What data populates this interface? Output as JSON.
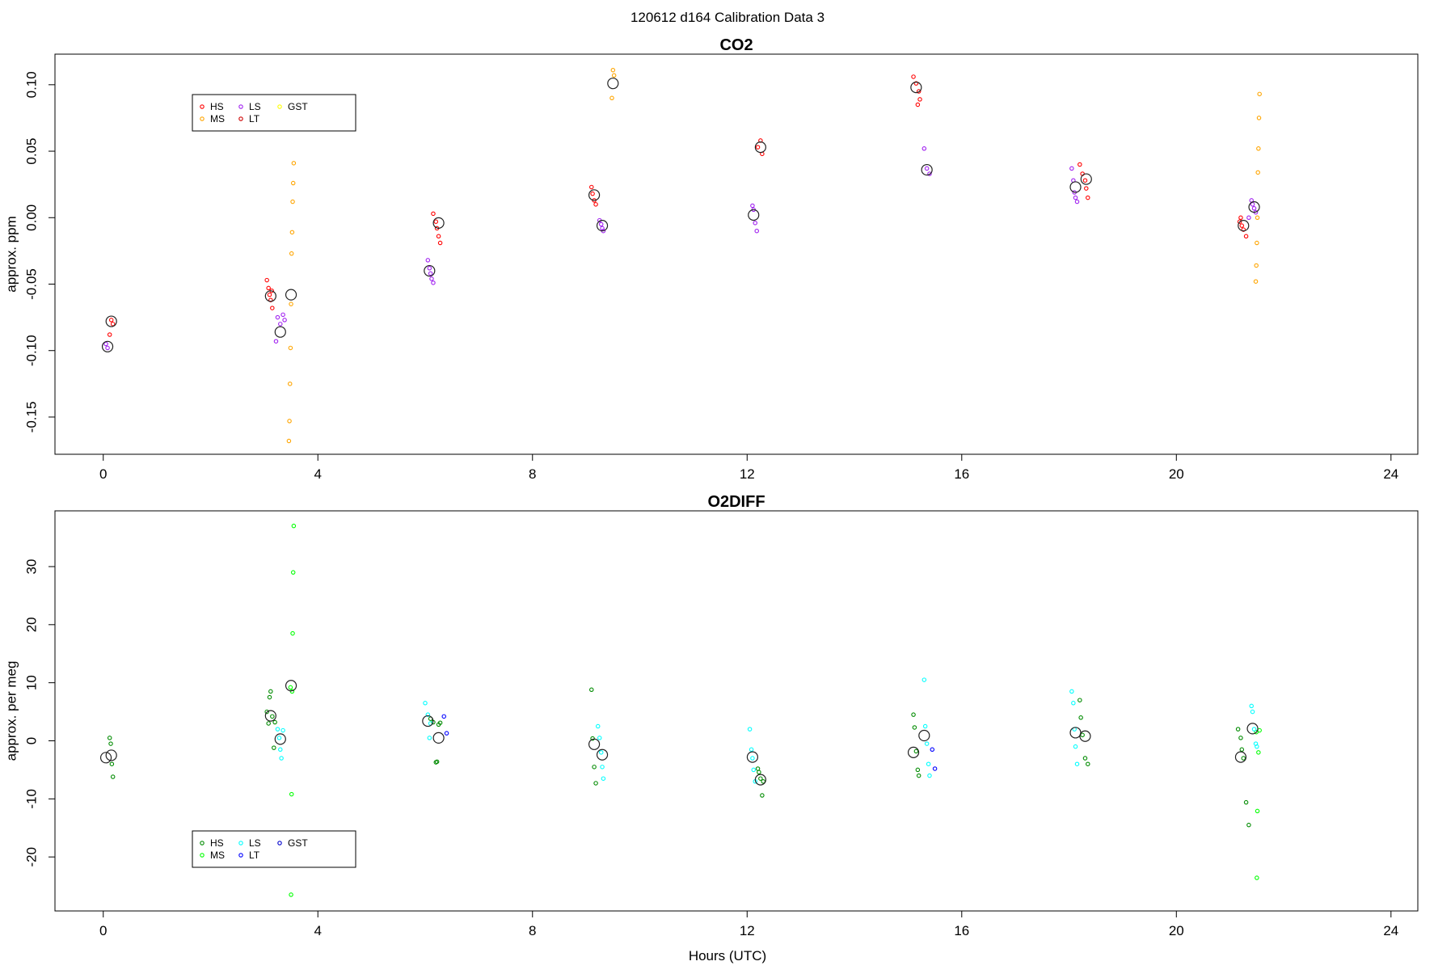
{
  "figure": {
    "title": "120612   d164   Calibration Data 3",
    "xlabel": "Hours (UTC)"
  },
  "chart_data": [
    {
      "type": "scatter",
      "title": "CO2",
      "xlabel": "",
      "ylabel": "approx. ppm",
      "xlim": [
        -0.9,
        24.5
      ],
      "ylim": [
        -0.178,
        0.123
      ],
      "xticks": [
        0,
        4,
        8,
        12,
        16,
        20,
        24
      ],
      "yticks": [
        -0.15,
        -0.1,
        -0.05,
        0.0,
        0.05,
        0.1
      ],
      "ytick_labels": [
        "-0.15",
        "-0.10",
        "-0.05",
        "0.00",
        "0.05",
        "0.10"
      ],
      "grid": false,
      "legend": {
        "placement": "top-left",
        "entries": [
          {
            "label": "HS",
            "color": "#ff0000"
          },
          {
            "label": "MS",
            "color": "#ffa500"
          },
          {
            "label": "LS",
            "color": "#a020f0"
          },
          {
            "label": "LT",
            "color": "#cd0000"
          },
          {
            "label": "GST",
            "color": "#ffff00"
          }
        ]
      },
      "series": [
        {
          "name": "HS",
          "color": "#ff0000",
          "x": [
            0.15,
            0.12,
            0.18,
            3.05,
            3.08,
            3.1,
            3.12,
            3.15,
            3.14,
            6.15,
            6.2,
            6.22,
            6.25,
            6.28,
            9.1,
            9.12,
            9.15,
            9.18,
            12.25,
            12.2,
            12.28,
            15.1,
            15.15,
            15.2,
            15.22,
            15.18,
            18.2,
            18.25,
            18.3,
            18.32,
            18.35,
            21.2,
            21.18,
            21.22,
            21.25,
            21.3
          ],
          "y": [
            -0.077,
            -0.088,
            -0.08,
            -0.047,
            -0.053,
            -0.058,
            -0.062,
            -0.068,
            -0.055,
            0.003,
            -0.003,
            -0.008,
            -0.014,
            -0.019,
            0.023,
            0.018,
            0.013,
            0.01,
            0.058,
            0.053,
            0.048,
            0.106,
            0.101,
            0.095,
            0.089,
            0.085,
            0.04,
            0.033,
            0.028,
            0.022,
            0.015,
            0.0,
            -0.003,
            -0.006,
            -0.009,
            -0.014
          ]
        },
        {
          "name": "LS",
          "color": "#a020f0",
          "x": [
            0.05,
            0.08,
            3.25,
            3.3,
            3.35,
            3.22,
            3.38,
            6.05,
            6.08,
            6.1,
            6.12,
            6.15,
            9.25,
            9.28,
            9.3,
            9.32,
            12.1,
            12.12,
            12.15,
            12.18,
            15.3,
            15.35,
            15.4,
            18.05,
            18.08,
            18.1,
            18.12,
            18.15,
            21.4,
            21.42,
            21.45,
            21.48,
            21.35
          ],
          "y": [
            -0.095,
            -0.098,
            -0.075,
            -0.08,
            -0.073,
            -0.093,
            -0.077,
            -0.032,
            -0.038,
            -0.042,
            -0.046,
            -0.049,
            -0.002,
            -0.005,
            -0.008,
            -0.01,
            0.009,
            0.006,
            -0.004,
            -0.01,
            0.052,
            0.037,
            0.033,
            0.037,
            0.028,
            0.019,
            0.015,
            0.012,
            0.013,
            0.01,
            0.007,
            0.004,
            0.0
          ]
        },
        {
          "name": "MS",
          "color": "#ffa500",
          "x": [
            3.55,
            3.54,
            3.53,
            3.52,
            3.51,
            3.5,
            3.49,
            3.48,
            3.47,
            3.46,
            9.5,
            9.52,
            9.48,
            21.55,
            21.54,
            21.53,
            21.52,
            21.51,
            21.5,
            21.49,
            21.48
          ],
          "y": [
            0.041,
            0.026,
            0.012,
            -0.011,
            -0.027,
            -0.065,
            -0.098,
            -0.125,
            -0.153,
            -0.168,
            0.111,
            0.107,
            0.09,
            0.093,
            0.075,
            0.052,
            0.034,
            0.0,
            -0.019,
            -0.036,
            -0.048
          ]
        }
      ],
      "averages": {
        "x": [
          0.15,
          0.08,
          3.12,
          3.3,
          3.5,
          6.25,
          6.08,
          9.15,
          9.3,
          9.5,
          12.25,
          12.12,
          15.15,
          15.35,
          18.32,
          18.12,
          21.25,
          21.45
        ],
        "y": [
          -0.078,
          -0.097,
          -0.059,
          -0.086,
          -0.058,
          -0.004,
          -0.04,
          0.017,
          -0.006,
          0.101,
          0.053,
          0.002,
          0.098,
          0.036,
          0.029,
          0.023,
          -0.006,
          0.008
        ]
      }
    },
    {
      "type": "scatter",
      "title": "O2DIFF",
      "xlabel": "",
      "ylabel": "approx. per meg",
      "xlim": [
        -0.9,
        24.5
      ],
      "ylim": [
        -29.3,
        39.6
      ],
      "xticks": [
        0,
        4,
        8,
        12,
        16,
        20,
        24
      ],
      "yticks": [
        -20,
        -10,
        0,
        10,
        20,
        30
      ],
      "ytick_labels": [
        "-20",
        "-10",
        "0",
        "10",
        "20",
        "30"
      ],
      "grid": false,
      "legend": {
        "placement": "bottom-left",
        "entries": [
          {
            "label": "HS",
            "color": "#008b00"
          },
          {
            "label": "MS",
            "color": "#00ff00"
          },
          {
            "label": "LS",
            "color": "#00ffff"
          },
          {
            "label": "LT",
            "color": "#0000ff"
          },
          {
            "label": "GST",
            "color": "#0000cd"
          }
        ]
      },
      "series": [
        {
          "name": "HS",
          "color": "#008b00",
          "x": [
            0.12,
            0.14,
            0.16,
            0.18,
            3.05,
            3.08,
            3.1,
            3.12,
            3.15,
            3.18,
            3.2,
            6.1,
            6.15,
            6.2,
            6.22,
            6.25,
            6.28,
            9.1,
            9.12,
            9.15,
            9.18,
            12.2,
            12.22,
            12.25,
            12.28,
            12.3,
            15.1,
            15.12,
            15.15,
            15.18,
            15.2,
            18.2,
            18.22,
            18.25,
            18.3,
            18.35,
            21.15,
            21.2,
            21.22,
            21.25,
            21.3,
            21.35
          ],
          "y": [
            0.5,
            -0.5,
            -4.0,
            -6.2,
            5.0,
            3.0,
            7.5,
            8.5,
            4.2,
            -1.2,
            3.2,
            3.8,
            3.2,
            -3.7,
            -3.6,
            2.8,
            3.1,
            8.8,
            0.4,
            -4.5,
            -7.3,
            -4.8,
            -5.4,
            -6.5,
            -9.4,
            -7.0,
            4.5,
            2.3,
            -1.8,
            -5.0,
            -6.0,
            7.0,
            4.0,
            1.0,
            -3.0,
            -4.0,
            2.0,
            0.5,
            -1.5,
            -3.0,
            -10.6,
            -14.5
          ]
        },
        {
          "name": "MS",
          "color": "#00ff00",
          "x": [
            3.55,
            3.54,
            3.53,
            3.52,
            3.51,
            3.5,
            3.49,
            21.55,
            21.53,
            21.51,
            21.5,
            21.49
          ],
          "y": [
            37.0,
            29.0,
            18.5,
            8.5,
            -9.2,
            -26.5,
            9.2,
            1.8,
            -2.0,
            -12.1,
            -23.6,
            1.5
          ]
        },
        {
          "name": "LS",
          "color": "#00ffff",
          "x": [
            3.25,
            3.28,
            3.3,
            3.32,
            3.35,
            6.0,
            6.05,
            6.08,
            6.1,
            9.22,
            9.25,
            9.28,
            9.3,
            9.32,
            12.05,
            12.08,
            12.1,
            12.12,
            12.15,
            15.3,
            15.32,
            15.35,
            15.38,
            15.4,
            18.05,
            18.08,
            18.1,
            18.12,
            18.15,
            21.4,
            21.42,
            21.45,
            21.48,
            21.5
          ],
          "y": [
            2.0,
            0.5,
            -1.5,
            -3.0,
            1.8,
            6.5,
            4.5,
            0.5,
            3.0,
            2.5,
            0.5,
            -2.0,
            -4.5,
            -6.5,
            2.0,
            -1.5,
            -3.0,
            -5.0,
            -7.0,
            10.5,
            2.5,
            -0.5,
            -4.0,
            -6.0,
            8.5,
            6.5,
            2.0,
            -1.0,
            -4.0,
            6.0,
            5.0,
            2.0,
            -0.5,
            -1.0
          ]
        },
        {
          "name": "LT",
          "color": "#0000ff",
          "x": [
            6.35,
            6.4,
            15.45,
            15.5
          ],
          "y": [
            4.2,
            1.3,
            -1.5,
            -4.8
          ]
        }
      ],
      "averages": {
        "x": [
          0.05,
          0.15,
          3.12,
          3.3,
          3.5,
          6.05,
          6.25,
          9.15,
          9.3,
          12.1,
          12.25,
          15.1,
          15.3,
          18.12,
          18.3,
          21.2,
          21.42
        ],
        "y": [
          -2.9,
          -2.5,
          4.3,
          0.3,
          9.5,
          3.4,
          0.5,
          -0.6,
          -2.4,
          -2.8,
          -6.7,
          -2.0,
          0.9,
          1.4,
          0.8,
          -2.8,
          2.1
        ]
      }
    }
  ]
}
